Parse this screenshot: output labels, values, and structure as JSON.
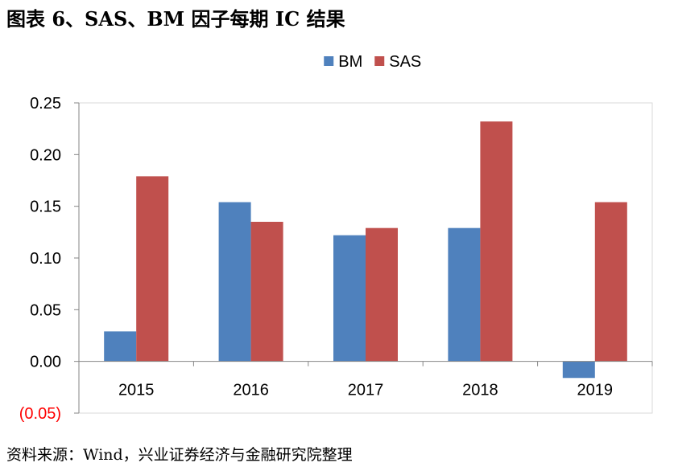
{
  "title": "图表 6、SAS、BM 因子每期 IC 结果",
  "source": "资料来源：Wind，兴业证券经济与金融研究院整理",
  "chart_data": {
    "type": "bar",
    "categories": [
      "2015",
      "2016",
      "2017",
      "2018",
      "2019"
    ],
    "series": [
      {
        "name": "BM",
        "color": "#4f81bd",
        "values": [
          0.029,
          0.154,
          0.122,
          0.129,
          -0.016
        ]
      },
      {
        "name": "SAS",
        "color": "#c0504d",
        "values": [
          0.179,
          0.135,
          0.129,
          0.232,
          0.154
        ]
      }
    ],
    "ylim": [
      -0.05,
      0.25
    ],
    "yticks": [
      0.25,
      0.2,
      0.15,
      0.1,
      0.05,
      0.0,
      -0.05
    ],
    "ytick_labels": [
      "0.25",
      "0.20",
      "0.15",
      "0.10",
      "0.05",
      "0.00",
      "(0.05)"
    ],
    "negative_tick_color": "#ff0000",
    "legend_position": "top-center",
    "grid": false
  }
}
